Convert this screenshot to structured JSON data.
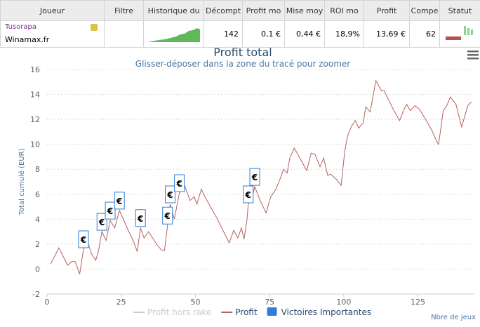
{
  "table": {
    "headers": [
      "Joueur",
      "Filtre",
      "Historique du",
      "Décompt",
      "Profit mo",
      "Mise moy",
      "ROI mo",
      "Profit",
      "Compe",
      "Statut"
    ],
    "row": {
      "player": "Tusorapa",
      "site": "Winamax.fr",
      "games": 142,
      "avg_profit": "0,1 €",
      "avg_stake": "0,44 €",
      "roi": "18,9%",
      "profit": "13,69 €",
      "competitions": 62
    }
  },
  "chart_data": {
    "type": "line",
    "title": "Profit total",
    "subtitle": "Glisser-déposer dans la zone du tracé pour zoomer",
    "y_label": "Total cumulé (EUR)",
    "x_label": "Nbre de jeux",
    "xlim": [
      0,
      144
    ],
    "xticks": [
      0,
      25,
      50,
      75,
      100,
      125
    ],
    "ylim": [
      -2,
      16
    ],
    "yticks": [
      -2,
      0,
      2,
      4,
      6,
      8,
      10,
      12,
      14,
      16
    ],
    "grid": true,
    "series": [
      {
        "name": "Profit hors rake",
        "color": "#cccccc",
        "visible": false
      },
      {
        "name": "Profit",
        "color": "#b5615c",
        "x": [
          1.2,
          4,
          7,
          8.3,
          9.5,
          11,
          12.3,
          13.8,
          15,
          16.4,
          17.3,
          18.5,
          19.9,
          21.3,
          22.8,
          24.4,
          26.8,
          29,
          30.4,
          31.5,
          32.7,
          34.2,
          35.8,
          37.2,
          38.7,
          39.6,
          40.6,
          41.5,
          42.9,
          44.6,
          46.5,
          48.2,
          49.6,
          50.5,
          52,
          53.4,
          55.3,
          57.2,
          59.5,
          61.4,
          62.9,
          64.3,
          65.5,
          66.4,
          67.4,
          67.8,
          69,
          70,
          71.8,
          73.8,
          75.4,
          77.1,
          78.5,
          79.7,
          80.9,
          81.8,
          83.3,
          85.2,
          87.5,
          89,
          90.3,
          92,
          93.2,
          94.6,
          95.6,
          97.5,
          99.1,
          100.3,
          101.3,
          102.7,
          103.9,
          105,
          106.5,
          107.4,
          108.9,
          109.8,
          110.8,
          112.7,
          113.6,
          114.8,
          116.9,
          118.8,
          120.3,
          121.2,
          122.4,
          124,
          125.5,
          127.8,
          129.7,
          131.2,
          131.9,
          132.6,
          133.5,
          134.7,
          135.9,
          137.8,
          139.7,
          141.8,
          143
        ],
        "values": [
          0.4,
          1.7,
          0.3,
          0.6,
          0.6,
          -0.4,
          1.6,
          2.1,
          1.2,
          0.7,
          1.4,
          3.0,
          2.3,
          3.9,
          3.3,
          4.7,
          3.4,
          2.3,
          1.4,
          3.3,
          2.5,
          3.0,
          2.4,
          1.9,
          1.5,
          1.5,
          3.5,
          5.2,
          4.0,
          6.1,
          6.6,
          5.5,
          5.8,
          5.2,
          6.4,
          5.7,
          4.9,
          4.1,
          3.0,
          2.1,
          3.1,
          2.5,
          3.3,
          2.4,
          4.0,
          5.2,
          5.6,
          6.6,
          5.5,
          4.5,
          5.8,
          6.4,
          7.2,
          8.0,
          7.7,
          8.9,
          9.7,
          8.9,
          7.9,
          9.3,
          9.2,
          8.2,
          8.9,
          7.5,
          7.6,
          7.2,
          6.7,
          9.4,
          10.7,
          11.5,
          11.9,
          11.3,
          11.7,
          13.0,
          12.6,
          13.8,
          15.1,
          14.3,
          14.3,
          13.7,
          12.7,
          11.9,
          12.8,
          13.2,
          12.7,
          13.1,
          12.8,
          11.9,
          11.1,
          10.3,
          10.0,
          11.1,
          12.7,
          13.1,
          13.8,
          13.2,
          11.4,
          13.1,
          13.4
        ]
      },
      {
        "name": "Victoires Importantes",
        "color": "#2f7ed8",
        "flag_label": "€",
        "x": [
          12.3,
          18.5,
          21.3,
          24.4,
          31.5,
          40.6,
          41.5,
          44.6,
          67.8,
          70
        ],
        "values": [
          1.6,
          3.0,
          3.9,
          4.7,
          3.3,
          3.5,
          5.2,
          6.1,
          5.2,
          6.6
        ]
      }
    ]
  }
}
